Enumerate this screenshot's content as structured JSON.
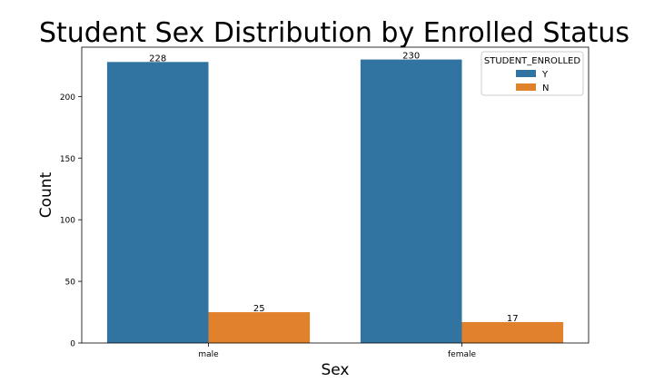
{
  "chart_data": {
    "type": "bar",
    "title": "Student Sex Distribution by Enrolled Status",
    "xlabel": "Sex",
    "ylabel": "Count",
    "categories": [
      "male",
      "female"
    ],
    "series": [
      {
        "name": "Y",
        "values": [
          228,
          230
        ],
        "color": "#3274a1"
      },
      {
        "name": "N",
        "values": [
          25,
          17
        ],
        "color": "#e1812c"
      }
    ],
    "data_labels": [
      "228",
      "25",
      "230",
      "17"
    ],
    "ylim": [
      0,
      240
    ],
    "yticks": [
      0,
      50,
      100,
      150,
      200
    ],
    "legend": {
      "title": "STUDENT_ENROLLED",
      "position": "top-right"
    },
    "grid": false
  }
}
